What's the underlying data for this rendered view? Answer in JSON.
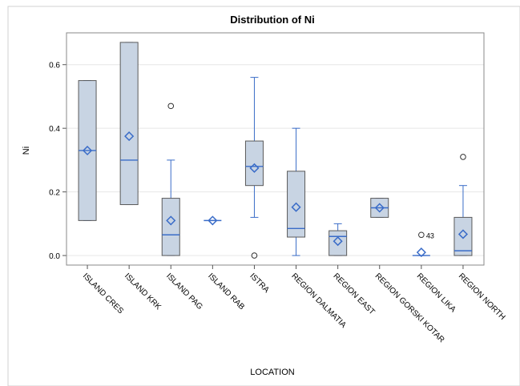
{
  "chart_data": {
    "type": "box",
    "title": "Distribution of Ni",
    "xlabel": "LOCATION",
    "ylabel": "Ni",
    "ylim": [
      -0.03,
      0.7
    ],
    "yticks": [
      0.0,
      0.2,
      0.4,
      0.6
    ],
    "ytick_labels": [
      "0.0",
      "0.2",
      "0.4",
      "0.6"
    ],
    "grid": true,
    "colors": {
      "box_fill": "#c8d4e3",
      "box_stroke": "#5a5a5a",
      "whisker": "#3a6cc8",
      "median": "#3a6cc8",
      "mean": "#3a6cc8",
      "outlier": "#333333",
      "gridline": "#e6e6e6"
    },
    "categories": [
      "ISLAND CRES",
      "ISLAND KRK",
      "ISLAND PAG",
      "ISLAND RAB",
      "ISTRA",
      "REGION DALMATIA",
      "REGION EAST",
      "REGION GORSKI KOTAR",
      "REGION LIKA",
      "REGION NORTH"
    ],
    "boxes": [
      {
        "q1": 0.11,
        "median": 0.33,
        "q3": 0.55,
        "whisker_low": 0.11,
        "whisker_high": 0.55,
        "mean": 0.33,
        "outliers": []
      },
      {
        "q1": 0.16,
        "median": 0.3,
        "q3": 0.67,
        "whisker_low": 0.16,
        "whisker_high": 0.67,
        "mean": 0.375,
        "outliers": []
      },
      {
        "q1": 0.0,
        "median": 0.065,
        "q3": 0.18,
        "whisker_low": 0.0,
        "whisker_high": 0.3,
        "mean": 0.11,
        "outliers": [
          0.47
        ]
      },
      {
        "q1": 0.11,
        "median": 0.11,
        "q3": 0.11,
        "whisker_low": 0.11,
        "whisker_high": 0.11,
        "mean": 0.11,
        "outliers": []
      },
      {
        "q1": 0.22,
        "median": 0.28,
        "q3": 0.36,
        "whisker_low": 0.12,
        "whisker_high": 0.56,
        "mean": 0.275,
        "outliers": [
          0.0
        ]
      },
      {
        "q1": 0.058,
        "median": 0.085,
        "q3": 0.265,
        "whisker_low": 0.0,
        "whisker_high": 0.4,
        "mean": 0.152,
        "outliers": []
      },
      {
        "q1": 0.0,
        "median": 0.06,
        "q3": 0.078,
        "whisker_low": 0.0,
        "whisker_high": 0.1,
        "mean": 0.045,
        "outliers": []
      },
      {
        "q1": 0.12,
        "median": 0.15,
        "q3": 0.18,
        "whisker_low": 0.12,
        "whisker_high": 0.18,
        "mean": 0.15,
        "outliers": []
      },
      {
        "q1": 0.0,
        "median": 0.0,
        "q3": 0.0,
        "whisker_low": 0.0,
        "whisker_high": 0.0,
        "mean": 0.01,
        "outliers": [
          0.065
        ],
        "outlier_labels": [
          "43"
        ]
      },
      {
        "q1": 0.0,
        "median": 0.015,
        "q3": 0.12,
        "whisker_low": 0.0,
        "whisker_high": 0.22,
        "mean": 0.067,
        "outliers": [
          0.31
        ]
      }
    ]
  }
}
